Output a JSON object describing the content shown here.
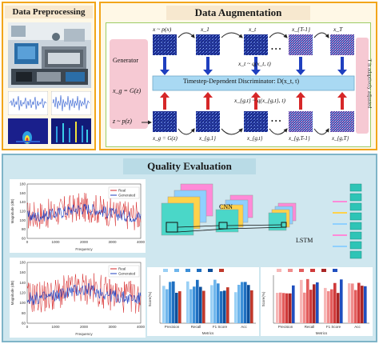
{
  "preprocessing": {
    "title": "Data Preprocessing"
  },
  "augmentation": {
    "title": "Data Augmentation",
    "generator_label": "Generator",
    "xg_eq": "x_g = G(z)",
    "z_eq": "z ~ p(z)",
    "side_label": "T is adaptively adjusted",
    "real_row": [
      "x ~ p(x)",
      "x_1",
      "x_t",
      "x_{T-1}",
      "x_T"
    ],
    "forward_q": "x_t ~ q(x_t, t)",
    "discriminator": "Timestep-Dependent Discriminator: D(x_t, t)",
    "gen_q": "x_{g,t} ~ q(x_{g,t}, t)",
    "gen_row": [
      "x_g = G(z)",
      "x_{g,1}",
      "x_{g,t}",
      "x_{g,T-1}",
      "x_{g,T}"
    ],
    "dots": "• • •"
  },
  "quality": {
    "title": "Quality Evaluation",
    "cnn_label": "CNN",
    "lstm_label": "LSTM"
  },
  "colors": {
    "preproc_border": "#f2a51a",
    "aug_border": "#f2a51a",
    "quality_bg": "#cfe7ef",
    "title_bg": "#f7e8cf",
    "quality_title_bg": "#b9dbe6",
    "real": "#d62728",
    "generated": "#1f3fbf"
  },
  "chart_data": [
    {
      "type": "line",
      "xlabel": "Frequency",
      "ylabel": "Magnitude (dB)",
      "legend": [
        "Real",
        "Generated"
      ],
      "xticks": [
        "0",
        "1000",
        "2000",
        "3000",
        "4000"
      ],
      "yticks": [
        "60",
        "80",
        "100",
        "120",
        "140",
        "160",
        "180"
      ],
      "xlim": [
        0,
        4000
      ],
      "ylim": [
        60,
        180
      ]
    },
    {
      "type": "line",
      "xlabel": "Frequency",
      "ylabel": "Magnitude (dB)",
      "legend": [
        "Real",
        "Generated"
      ],
      "xticks": [
        "0",
        "1000",
        "2000",
        "3000",
        "4000"
      ],
      "yticks": [
        "60",
        "80",
        "100",
        "120",
        "140",
        "160",
        "180"
      ],
      "xlim": [
        0,
        4000
      ],
      "ylim": [
        60,
        180
      ]
    },
    {
      "type": "bar",
      "ylabel": "Score(%)",
      "xlabel": "Metrics",
      "categories": [
        "Precision",
        "Recall",
        "F1 Score",
        "Acc"
      ]
    },
    {
      "type": "bar",
      "ylabel": "Score(%)",
      "xlabel": "Metrics",
      "categories": [
        "Precision",
        "Recall",
        "F1 Score",
        "Acc"
      ]
    }
  ]
}
